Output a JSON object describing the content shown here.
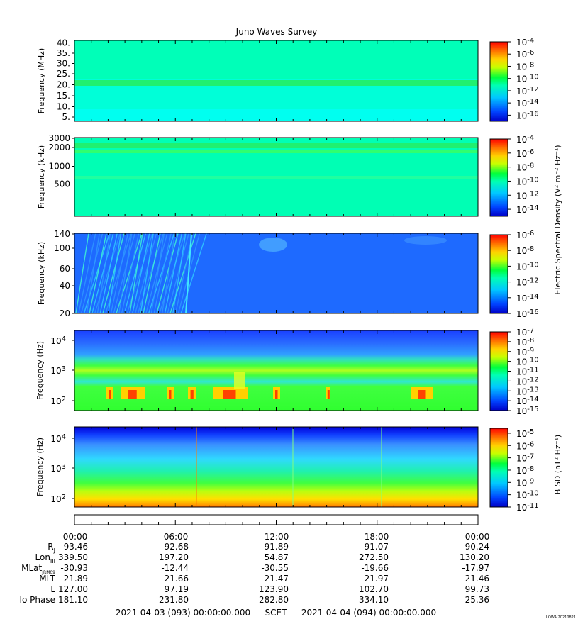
{
  "title": "Juno Waves Survey",
  "chart_data": [
    {
      "type": "heatmap",
      "panel": "HFR high",
      "ylabel": "Frequency (MHz)",
      "ytick_labels": [
        "40.",
        "35.",
        "30.",
        "25.",
        "20.",
        "15.",
        "10.",
        "5."
      ],
      "ylim": [
        3,
        41
      ],
      "yscale": "linear",
      "colorbar_labels": [
        {
          "base": "10",
          "exp": "-4"
        },
        {
          "base": "10",
          "exp": "-6"
        },
        {
          "base": "10",
          "exp": "-8"
        },
        {
          "base": "10",
          "exp": "-10"
        },
        {
          "base": "10",
          "exp": "-12"
        },
        {
          "base": "10",
          "exp": "-14"
        },
        {
          "base": "10",
          "exp": "-16"
        }
      ],
      "colorbar_range": [
        -17,
        -4
      ]
    },
    {
      "type": "heatmap",
      "panel": "HFR low",
      "ylabel": "Frequency (kHz)",
      "ytick_labels": [
        "3000",
        "2000",
        "1000",
        "500"
      ],
      "ylim": [
        100,
        3000
      ],
      "yscale": "log",
      "colorbar_labels": [
        {
          "base": "10",
          "exp": "-4"
        },
        {
          "base": "10",
          "exp": "-6"
        },
        {
          "base": "10",
          "exp": "-8"
        },
        {
          "base": "10",
          "exp": "-10"
        },
        {
          "base": "10",
          "exp": "-12"
        },
        {
          "base": "10",
          "exp": "-14"
        }
      ],
      "colorbar_range": [
        -15,
        -4
      ]
    },
    {
      "type": "heatmap",
      "panel": "LFR high",
      "ylabel": "Frequency (kHz)",
      "ytick_labels": [
        "140",
        "100",
        "60",
        "40",
        "20"
      ],
      "ylim": [
        20,
        140
      ],
      "yscale": "log",
      "colorbar_labels": [
        {
          "base": "10",
          "exp": "-6"
        },
        {
          "base": "10",
          "exp": "-8"
        },
        {
          "base": "10",
          "exp": "-10"
        },
        {
          "base": "10",
          "exp": "-12"
        },
        {
          "base": "10",
          "exp": "-14"
        },
        {
          "base": "10",
          "exp": "-16"
        }
      ],
      "colorbar_range": [
        -16,
        -6
      ]
    },
    {
      "type": "heatmap",
      "panel": "LFR low (E)",
      "ylabel": "Frequency (Hz)",
      "ytick_labels": [
        {
          "base": "10",
          "exp": "4"
        },
        {
          "base": "10",
          "exp": "3"
        },
        {
          "base": "10",
          "exp": "2"
        }
      ],
      "ylim": [
        50,
        20000
      ],
      "yscale": "log",
      "colorbar_labels": [
        {
          "base": "10",
          "exp": "-7"
        },
        {
          "base": "10",
          "exp": "-8"
        },
        {
          "base": "10",
          "exp": "-9"
        },
        {
          "base": "10",
          "exp": "-10"
        },
        {
          "base": "10",
          "exp": "-11"
        },
        {
          "base": "10",
          "exp": "-12"
        },
        {
          "base": "10",
          "exp": "-13"
        },
        {
          "base": "10",
          "exp": "-14"
        },
        {
          "base": "10",
          "exp": "-15"
        }
      ],
      "colorbar_range": [
        -15,
        -7
      ]
    },
    {
      "type": "heatmap",
      "panel": "LFR low (B)",
      "ylabel": "Frequency (Hz)",
      "ytick_labels": [
        {
          "base": "10",
          "exp": "4"
        },
        {
          "base": "10",
          "exp": "3"
        },
        {
          "base": "10",
          "exp": "2"
        }
      ],
      "ylim": [
        50,
        20000
      ],
      "yscale": "log",
      "colorbar_labels": [
        {
          "base": "10",
          "exp": "-5"
        },
        {
          "base": "10",
          "exp": "-6"
        },
        {
          "base": "10",
          "exp": "-7"
        },
        {
          "base": "10",
          "exp": "-8"
        },
        {
          "base": "10",
          "exp": "-9"
        },
        {
          "base": "10",
          "exp": "-10"
        },
        {
          "base": "10",
          "exp": "-11"
        }
      ],
      "colorbar_range": [
        -11,
        -4.6
      ]
    }
  ],
  "colorbar_titles": {
    "electric": "Electric Spectral Density (V² m⁻² Hz⁻¹)",
    "magnetic": "B SD (nT² Hz⁻¹)"
  },
  "ephemeris": {
    "time_labels": [
      "00:00",
      "06:00",
      "12:00",
      "18:00",
      "00:00"
    ],
    "rows": [
      {
        "label": "R",
        "sub": "J",
        "values": [
          "93.46",
          "92.68",
          "91.89",
          "91.07",
          "90.24"
        ]
      },
      {
        "label": "Lon",
        "sub": "III",
        "values": [
          "339.50",
          "197.20",
          "54.87",
          "272.50",
          "130.20"
        ]
      },
      {
        "label": "MLat",
        "sub": "JRM09",
        "values": [
          "-30.93",
          "-12.44",
          "-30.55",
          "-19.66",
          "-17.97"
        ]
      },
      {
        "label": "MLT",
        "sub": "",
        "values": [
          "21.89",
          "21.66",
          "21.47",
          "21.97",
          "21.46"
        ]
      },
      {
        "label": "L",
        "sub": "",
        "values": [
          "127.00",
          "97.19",
          "123.90",
          "102.70",
          "99.73"
        ]
      },
      {
        "label": "Io Phase",
        "sub": "",
        "values": [
          "181.10",
          "231.80",
          "282.80",
          "334.10",
          "25.36"
        ]
      }
    ]
  },
  "footer": {
    "start": "2021-04-03 (093) 00:00:00.000",
    "scet": "SCET",
    "end": "2021-04-04 (094) 00:00:00.000"
  },
  "stamp": "UIOWA 20210821"
}
